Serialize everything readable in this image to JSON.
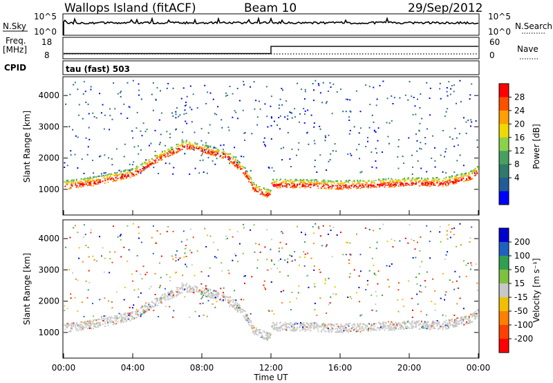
{
  "header": {
    "station": "Wallops Island (fitACF)",
    "beam": "Beam 10",
    "date": "29/Sep/2012"
  },
  "top_panels": {
    "nsky_label": "N.Sky",
    "nsky_ticks": [
      "10^5",
      "10^0"
    ],
    "nsearch_label": "N.Search",
    "nsearch_ticks": [
      "10^5",
      "10^0"
    ],
    "freq_label": "Freq.",
    "freq_unit": "[MHz]",
    "freq_ticks": [
      "18",
      "8"
    ],
    "nave_label": "Nave",
    "nave_ticks": [
      "60",
      "0"
    ],
    "cpid_label": "CPID",
    "cpid_text": "tau (fast) 503"
  },
  "chart_data": [
    {
      "type": "heatmap",
      "name": "power",
      "ylabel": "Slant Range [km]",
      "ylim": [
        180,
        4600
      ],
      "yticks": [
        "1000",
        "2000",
        "3000",
        "4000"
      ],
      "xlim": [
        "00:00",
        "24:00"
      ],
      "colorbar": {
        "label": "Power [dB]",
        "ticks": [
          "28",
          "24",
          "20",
          "16",
          "12",
          "8",
          "4"
        ],
        "colors": [
          "#ff0000",
          "#ff5000",
          "#ffa000",
          "#f0d800",
          "#8ad24a",
          "#48a060",
          "#2f7a6a",
          "#205c96",
          "#0000ff"
        ]
      },
      "bands": [
        {
          "x": [
            0,
            2,
            4,
            5.5,
            7,
            8.5,
            9.5,
            10.5,
            11,
            12
          ],
          "y": [
            1100,
            1250,
            1500,
            2000,
            2400,
            2200,
            2050,
            1500,
            1000,
            800
          ],
          "level": "high"
        },
        {
          "x": [
            12,
            14,
            16,
            18,
            20,
            22,
            23.5,
            24
          ],
          "y": [
            1150,
            1150,
            1100,
            1150,
            1200,
            1200,
            1400,
            1600
          ],
          "level": "high"
        }
      ]
    },
    {
      "type": "heatmap",
      "name": "velocity",
      "ylabel": "Slant Range [km]",
      "ylim": [
        180,
        4600
      ],
      "yticks": [
        "1000",
        "2000",
        "3000",
        "4000"
      ],
      "xlabel": "Time UT",
      "xticks": [
        "00:00",
        "04:00",
        "08:00",
        "12:00",
        "16:00",
        "20:00",
        "00:00"
      ],
      "colorbar": {
        "label": "Velocity [m s⁻¹]",
        "ticks": [
          "200",
          "100",
          "50",
          "15",
          "-15",
          "-50",
          "-100",
          "-200"
        ],
        "colors": [
          "#0000d0",
          "#2060c0",
          "#30a050",
          "#80c040",
          "#c8c8c8",
          "#f0c000",
          "#ff8000",
          "#ff4000",
          "#ff0000"
        ]
      }
    }
  ],
  "freq_series": {
    "x": [
      0,
      12,
      12,
      24
    ],
    "y": [
      10.5,
      10.5,
      14.5,
      14.5
    ]
  }
}
